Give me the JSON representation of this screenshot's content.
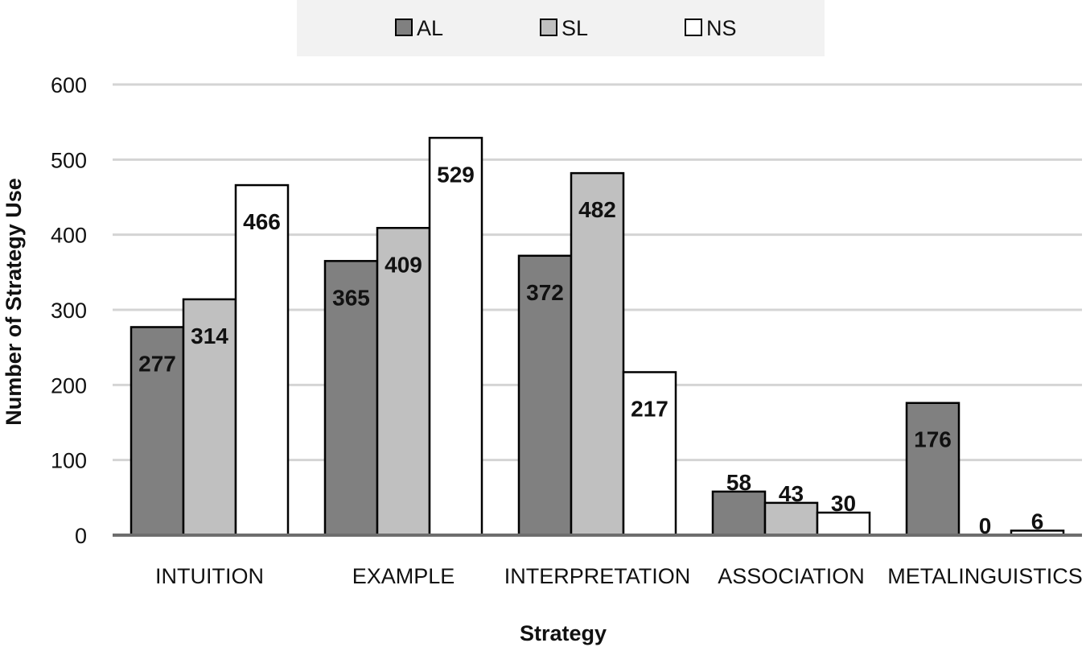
{
  "chart_data": {
    "type": "bar",
    "title": "",
    "xlabel": "Strategy",
    "ylabel": "Number of Strategy Use",
    "ylim": [
      0,
      600
    ],
    "yticks": [
      0,
      100,
      200,
      300,
      400,
      500,
      600
    ],
    "grid": true,
    "legend_position": "top",
    "categories": [
      "INTUITION",
      "EXAMPLE",
      "INTERPRETATION",
      "ASSOCIATION",
      "METALINGUISTICS"
    ],
    "series": [
      {
        "name": "AL",
        "color": "#808080",
        "values": [
          277,
          365,
          372,
          58,
          176
        ]
      },
      {
        "name": "SL",
        "color": "#c0c0c0",
        "values": [
          314,
          409,
          482,
          43,
          0
        ]
      },
      {
        "name": "NS",
        "color": "#ffffff",
        "values": [
          466,
          529,
          217,
          30,
          6
        ]
      }
    ]
  }
}
